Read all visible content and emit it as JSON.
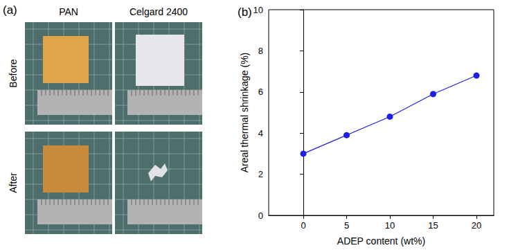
{
  "chart_data": {
    "type": "line",
    "title": "(b)",
    "x_label": "ADEP content (wt%)",
    "y_label": "Areal thermal shrinkage (%)",
    "x": [
      0,
      5,
      10,
      15,
      20
    ],
    "values": [
      3.0,
      3.9,
      4.8,
      5.9,
      6.8
    ],
    "color": "#1f1fe6",
    "marker": "circle",
    "line_style": "solid",
    "xlim": [
      -4,
      22
    ],
    "xticks": [
      0,
      5,
      10,
      15,
      20
    ],
    "ylim": [
      0,
      10
    ],
    "yticks": [
      0,
      2,
      4,
      6,
      8,
      10
    ],
    "grid": false
  },
  "photo_panel": {
    "label": "(a)",
    "columns": [
      "PAN",
      "Celgard 2400"
    ],
    "rows": [
      "Before",
      "After"
    ]
  }
}
